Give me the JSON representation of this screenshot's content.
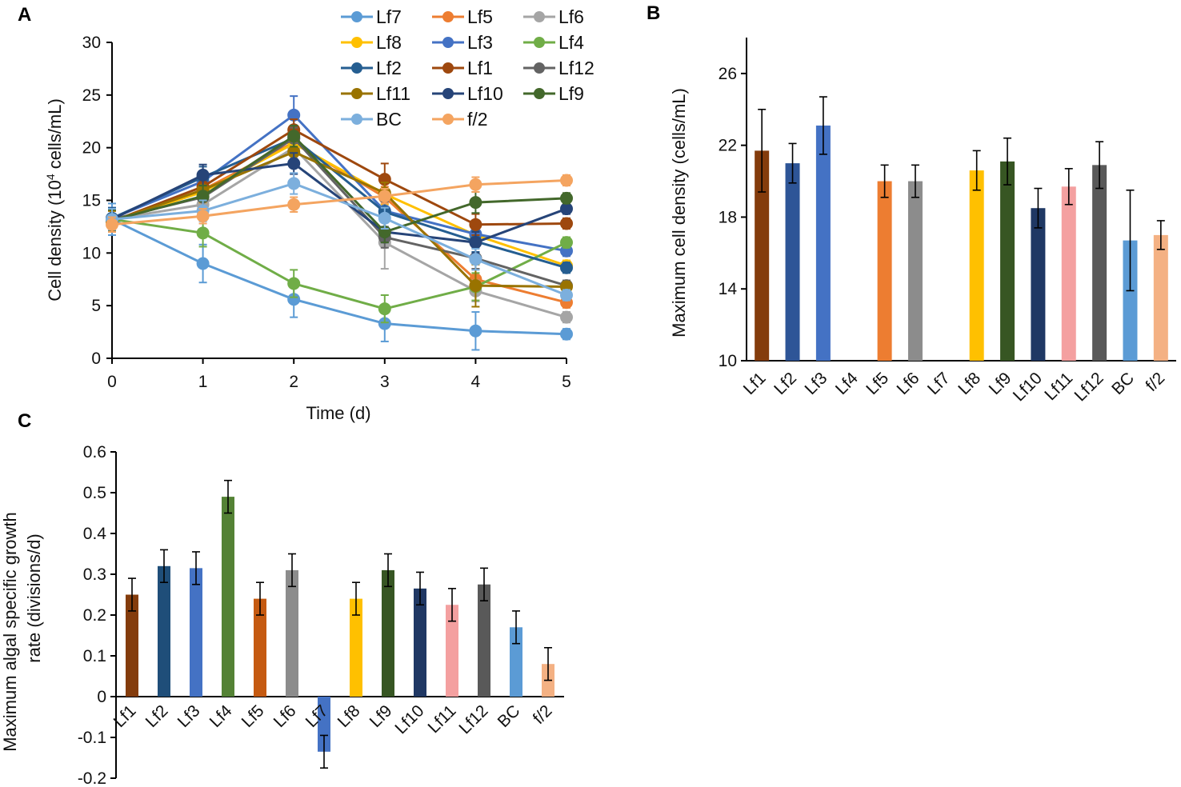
{
  "chart_data": [
    {
      "panel": "A",
      "type": "line",
      "xlabel": "Time (d)",
      "ylabel_pre": "Cell density (10",
      "ylabel_sup": "4",
      "ylabel_post": " cells/mL)",
      "x": [
        0,
        1,
        2,
        3,
        4,
        5
      ],
      "xlim": [
        0,
        5
      ],
      "ylim": [
        0,
        30
      ],
      "yticks": [
        0,
        5,
        10,
        15,
        20,
        25,
        30
      ],
      "legend_position": "top",
      "series": [
        {
          "name": "Lf7",
          "color": "#5b9bd5",
          "values": [
            13.2,
            9.0,
            5.6,
            3.3,
            2.6,
            2.3
          ],
          "errors": [
            1.5,
            1.8,
            1.7,
            1.7,
            1.8,
            0.5
          ]
        },
        {
          "name": "Lf5",
          "color": "#ed7d31",
          "values": [
            13.0,
            16.0,
            20.5,
            15.3,
            7.5,
            5.3
          ],
          "errors": [
            1.0,
            1.0,
            1.0,
            1.0,
            1.0,
            0.5
          ]
        },
        {
          "name": "Lf6",
          "color": "#a5a5a5",
          "values": [
            13.2,
            14.6,
            20.0,
            11.0,
            6.4,
            3.9
          ],
          "errors": [
            1.0,
            1.0,
            1.0,
            2.5,
            1.0,
            0.5
          ]
        },
        {
          "name": "Lf8",
          "color": "#ffc000",
          "values": [
            13.0,
            15.8,
            20.4,
            15.6,
            11.7,
            8.8
          ],
          "errors": [
            1.0,
            1.0,
            1.0,
            1.0,
            1.0,
            0.5
          ]
        },
        {
          "name": "Lf3",
          "color": "#4472c4",
          "values": [
            13.3,
            16.8,
            23.1,
            14.0,
            11.8,
            10.2
          ],
          "errors": [
            1.0,
            1.0,
            1.8,
            1.0,
            1.0,
            0.5
          ]
        },
        {
          "name": "Lf4",
          "color": "#70ad47",
          "values": [
            13.2,
            11.9,
            7.1,
            4.7,
            6.8,
            11.0
          ],
          "errors": [
            1.0,
            1.3,
            1.3,
            1.3,
            1.3,
            0.5
          ]
        },
        {
          "name": "Lf2",
          "color": "#255e91",
          "values": [
            13.3,
            17.2,
            20.9,
            13.9,
            11.1,
            8.6
          ],
          "errors": [
            1.0,
            1.0,
            1.0,
            1.0,
            1.0,
            0.5
          ]
        },
        {
          "name": "Lf1",
          "color": "#9e480e",
          "values": [
            13.0,
            16.3,
            21.7,
            17.0,
            12.7,
            12.8
          ],
          "errors": [
            1.0,
            1.0,
            1.0,
            1.5,
            1.0,
            0.5
          ]
        },
        {
          "name": "Lf12",
          "color": "#636363",
          "values": [
            13.2,
            15.3,
            20.9,
            11.5,
            9.5,
            6.9
          ],
          "errors": [
            1.0,
            1.0,
            1.0,
            1.0,
            1.0,
            0.5
          ]
        },
        {
          "name": "Lf11",
          "color": "#997300",
          "values": [
            13.0,
            16.0,
            19.6,
            15.7,
            6.9,
            6.8
          ],
          "errors": [
            1.0,
            1.0,
            1.0,
            1.0,
            2.0,
            0.5
          ]
        },
        {
          "name": "Lf10",
          "color": "#264478",
          "values": [
            13.2,
            17.4,
            18.5,
            12.0,
            11.0,
            14.2
          ],
          "errors": [
            1.0,
            1.0,
            1.0,
            1.0,
            1.0,
            0.5
          ]
        },
        {
          "name": "Lf9",
          "color": "#43682b",
          "values": [
            13.1,
            15.4,
            21.1,
            12.0,
            14.8,
            15.2
          ],
          "errors": [
            1.0,
            1.0,
            1.0,
            1.0,
            1.0,
            0.5
          ]
        },
        {
          "name": "BC",
          "color": "#7cafdd",
          "values": [
            13.2,
            14.0,
            16.6,
            13.3,
            9.4,
            6.0
          ],
          "errors": [
            1.0,
            1.0,
            1.0,
            1.0,
            1.0,
            0.5
          ]
        },
        {
          "name": "f/2",
          "color": "#f4a460",
          "values": [
            12.7,
            13.5,
            14.6,
            15.4,
            16.5,
            16.9
          ],
          "errors": [
            0.7,
            0.7,
            0.7,
            0.7,
            0.7,
            0.5
          ]
        }
      ]
    },
    {
      "panel": "B",
      "type": "bar",
      "ylabel": "Maximum  cell density (cells/mL)",
      "xlabel": "",
      "ylim": [
        10,
        28
      ],
      "yticks": [
        10,
        14,
        18,
        22,
        26
      ],
      "categories": [
        "Lf1",
        "Lf2",
        "Lf3",
        "Lf4",
        "Lf5",
        "Lf6",
        "Lf7",
        "Lf8",
        "Lf9",
        "Lf10",
        "Lf11",
        "Lf12",
        "BC",
        "f/2"
      ],
      "values": [
        21.7,
        21.0,
        23.1,
        null,
        20.0,
        20.0,
        null,
        20.6,
        21.1,
        18.5,
        19.7,
        20.9,
        16.7,
        17.0
      ],
      "errors": [
        2.3,
        1.1,
        1.6,
        null,
        0.9,
        0.9,
        null,
        1.1,
        1.3,
        1.1,
        1.0,
        1.3,
        2.8,
        0.8
      ],
      "colors": [
        "#843c0c",
        "#2e5597",
        "#4472c4",
        "#70ad47",
        "#ed7d31",
        "#8c8c8c",
        "#4472c4",
        "#ffc000",
        "#375623",
        "#1f3864",
        "#f4a0a0",
        "#595959",
        "#5b9bd5",
        "#f4b183"
      ]
    },
    {
      "panel": "C",
      "type": "bar",
      "ylabel_line1": "Maximum  algal specific growth",
      "ylabel_line2": "rate (divisions/d)",
      "xlabel": "",
      "ylim": [
        -0.2,
        0.6
      ],
      "yticks": [
        "-0.2",
        "-0.1",
        "0",
        "0.1",
        "0.2",
        "0.3",
        "0.4",
        "0.5",
        "0.6"
      ],
      "categories": [
        "Lf1",
        "Lf2",
        "Lf3",
        "Lf4",
        "Lf5",
        "Lf6",
        "Lf7",
        "Lf8",
        "Lf9",
        "Lf10",
        "Lf11",
        "Lf12",
        "BC",
        "f/2"
      ],
      "values": [
        0.25,
        0.32,
        0.315,
        0.49,
        0.24,
        0.31,
        -0.135,
        0.24,
        0.31,
        0.265,
        0.225,
        0.275,
        0.17,
        0.08
      ],
      "errors": [
        0.04,
        0.04,
        0.04,
        0.04,
        0.04,
        0.04,
        0.04,
        0.04,
        0.04,
        0.04,
        0.04,
        0.04,
        0.04,
        0.04
      ],
      "colors": [
        "#843c0c",
        "#1f4e79",
        "#4472c4",
        "#548235",
        "#c55a11",
        "#8c8c8c",
        "#4472c4",
        "#ffc000",
        "#375623",
        "#203864",
        "#f4a0a0",
        "#595959",
        "#5b9bd5",
        "#f4b183"
      ]
    }
  ]
}
